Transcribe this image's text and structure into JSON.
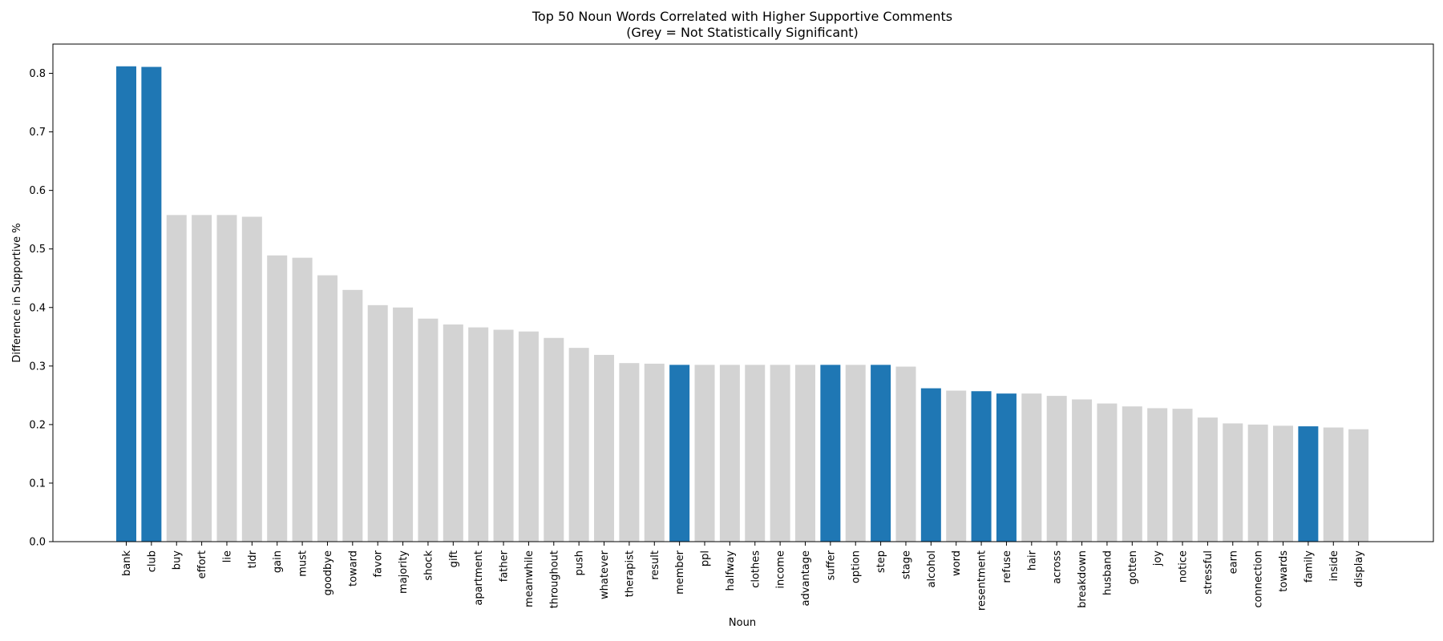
{
  "colors": {
    "significant": "#1f77b4",
    "not_significant": "#d3d3d3"
  },
  "chart_data": {
    "type": "bar",
    "title": "Top 50 Noun Words Correlated with Higher Supportive Comments",
    "subtitle": "(Grey = Not Statistically Significant)",
    "xlabel": "Noun",
    "ylabel": "Difference in Supportive %",
    "ylim": [
      0,
      0.85
    ],
    "yticks": [
      "0.0",
      "0.1",
      "0.2",
      "0.3",
      "0.4",
      "0.5",
      "0.6",
      "0.7",
      "0.8"
    ],
    "grid": false,
    "categories": [
      "bank",
      "club",
      "buy",
      "effort",
      "lie",
      "tldr",
      "gain",
      "must",
      "goodbye",
      "toward",
      "favor",
      "majority",
      "shock",
      "gift",
      "apartment",
      "father",
      "meanwhile",
      "throughout",
      "push",
      "whatever",
      "therapist",
      "result",
      "member",
      "ppl",
      "halfway",
      "clothes",
      "income",
      "advantage",
      "suffer",
      "option",
      "step",
      "stage",
      "alcohol",
      "word",
      "resentment",
      "refuse",
      "hair",
      "across",
      "breakdown",
      "husband",
      "gotten",
      "joy",
      "notice",
      "stressful",
      "earn",
      "connection",
      "towards",
      "family",
      "inside",
      "display"
    ],
    "values": [
      0.812,
      0.811,
      0.558,
      0.558,
      0.558,
      0.555,
      0.489,
      0.485,
      0.455,
      0.43,
      0.404,
      0.4,
      0.381,
      0.371,
      0.366,
      0.362,
      0.359,
      0.348,
      0.331,
      0.319,
      0.305,
      0.304,
      0.302,
      0.302,
      0.302,
      0.302,
      0.302,
      0.302,
      0.302,
      0.302,
      0.302,
      0.299,
      0.262,
      0.258,
      0.257,
      0.253,
      0.253,
      0.249,
      0.243,
      0.236,
      0.231,
      0.228,
      0.227,
      0.212,
      0.202,
      0.2,
      0.198,
      0.197,
      0.195,
      0.192
    ],
    "significant": [
      true,
      true,
      false,
      false,
      false,
      false,
      false,
      false,
      false,
      false,
      false,
      false,
      false,
      false,
      false,
      false,
      false,
      false,
      false,
      false,
      false,
      false,
      true,
      false,
      false,
      false,
      false,
      false,
      true,
      false,
      true,
      false,
      true,
      false,
      true,
      true,
      false,
      false,
      false,
      false,
      false,
      false,
      false,
      false,
      false,
      false,
      false,
      true,
      false,
      false
    ]
  }
}
